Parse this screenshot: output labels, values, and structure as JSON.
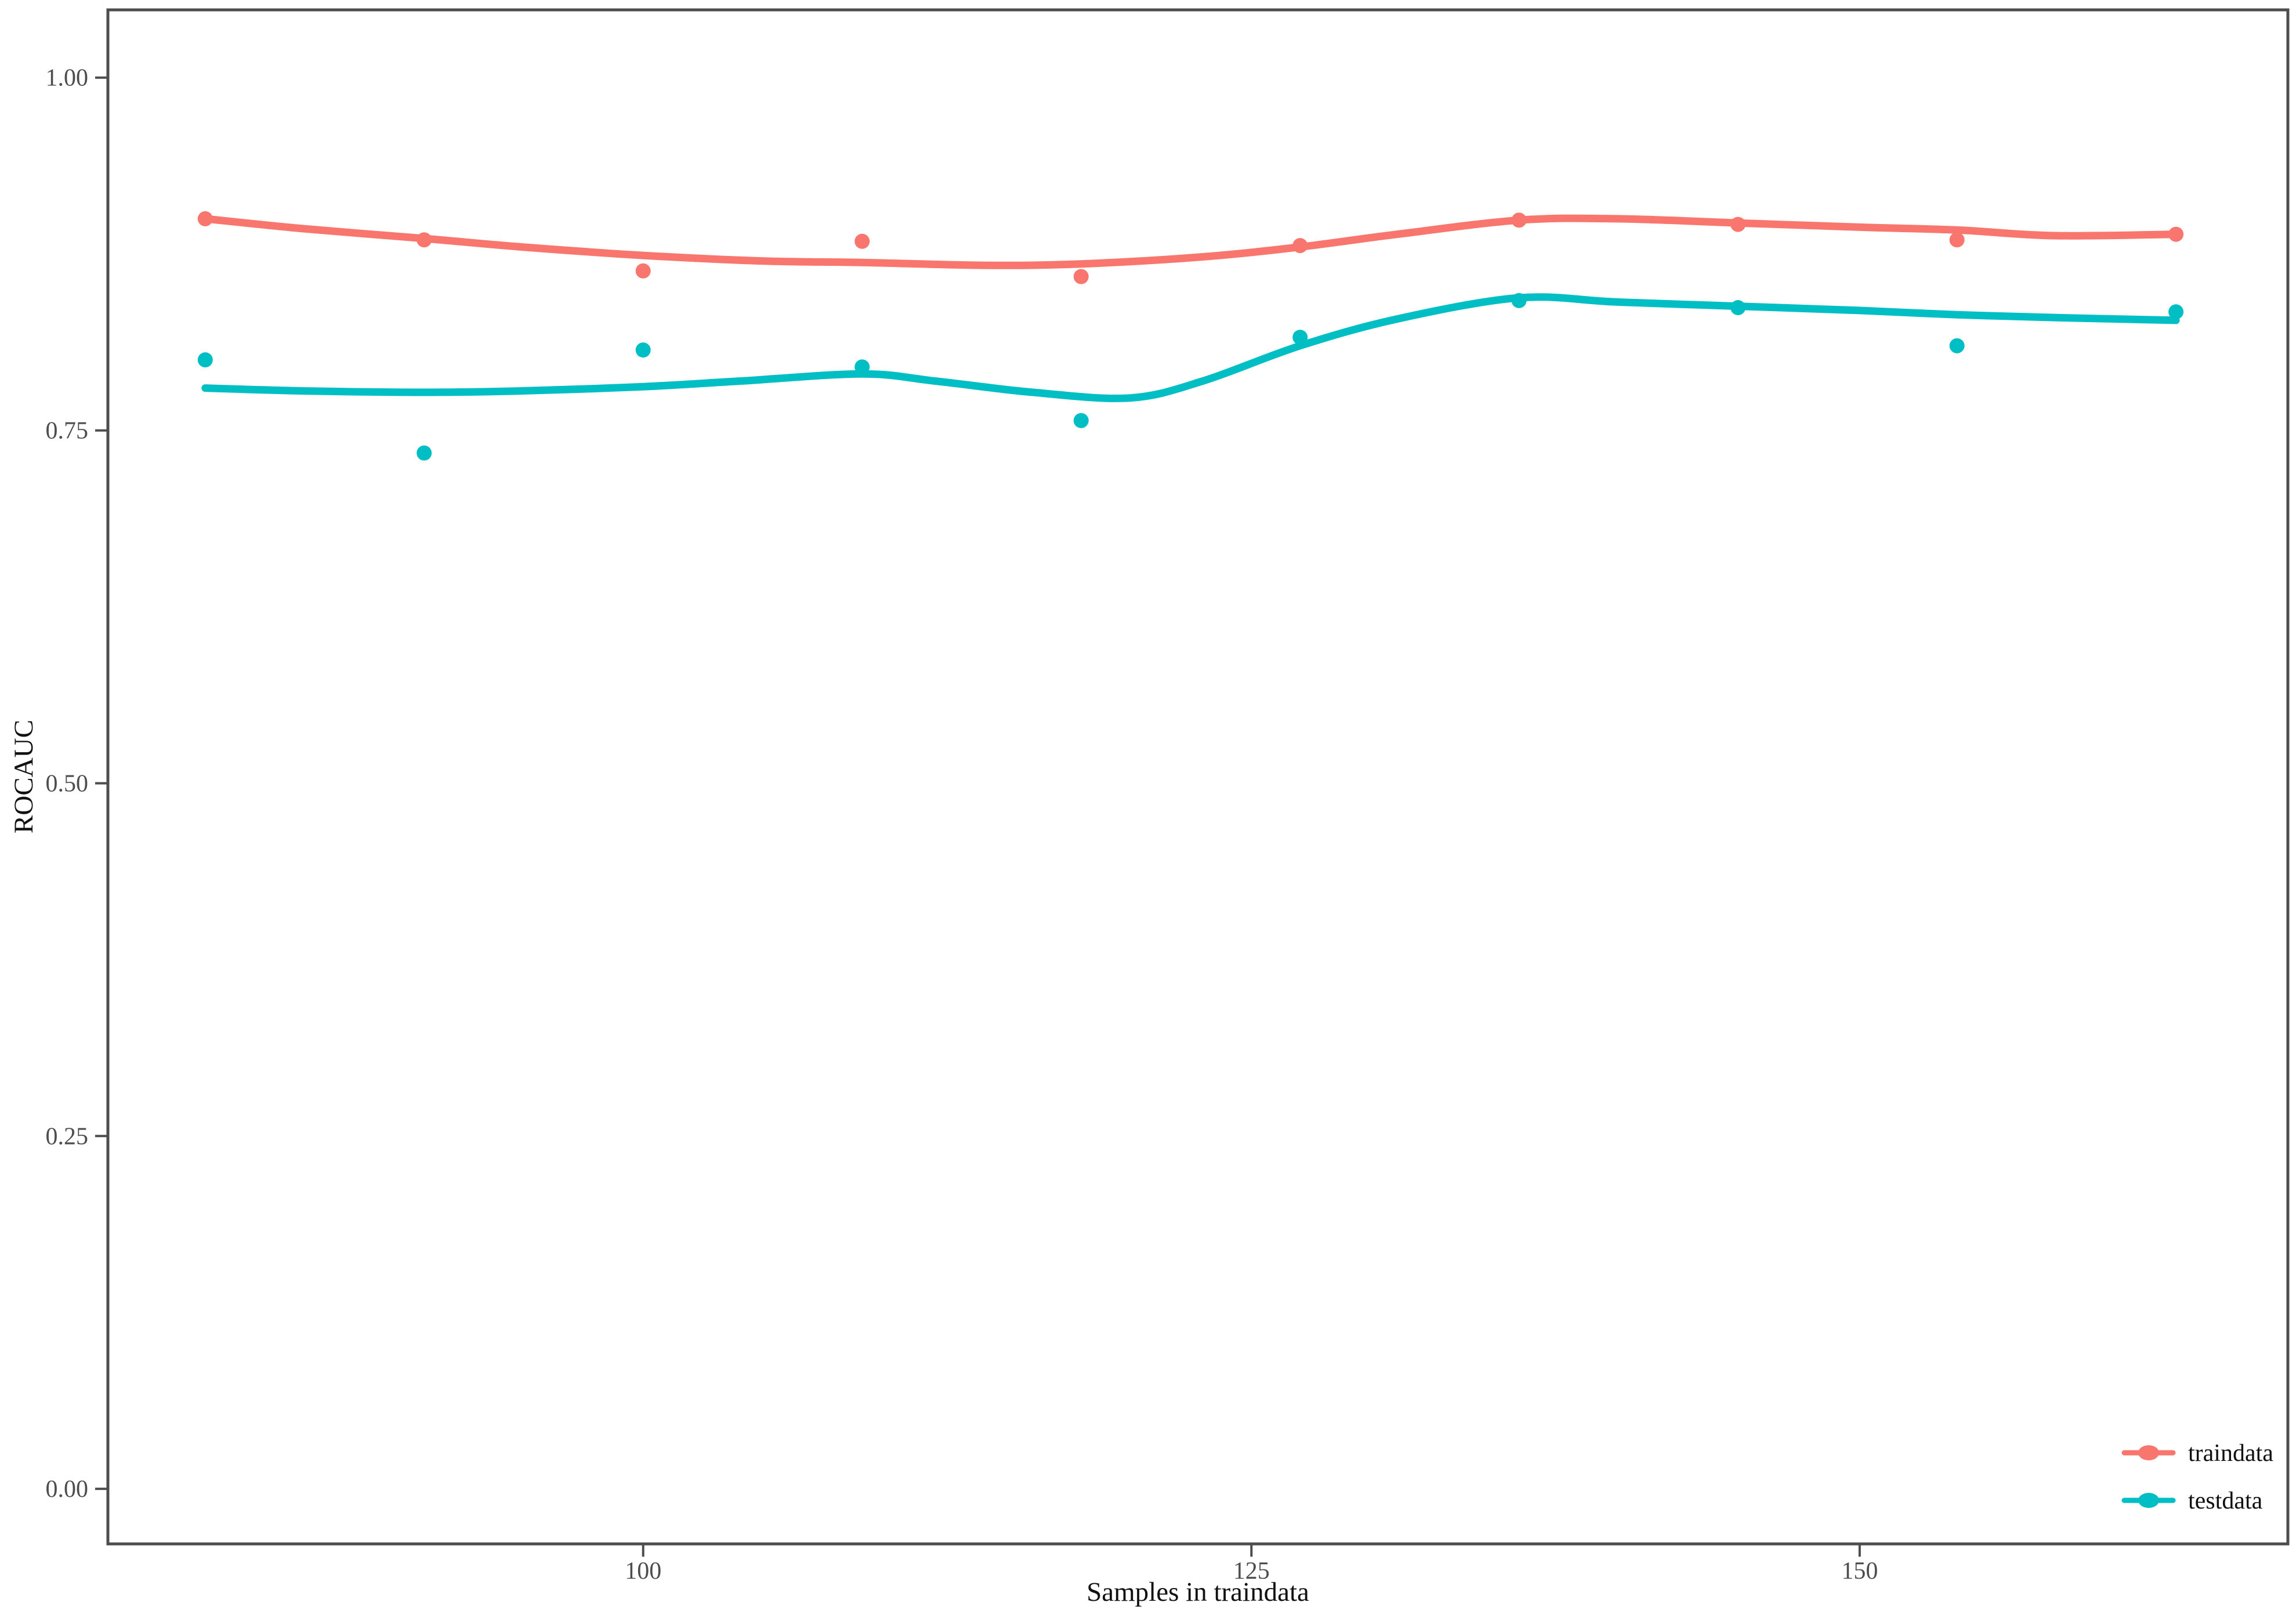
{
  "figure": {
    "background": "#ffffff",
    "panel_border_color": "#4d4d4d",
    "tick_color": "#4d4d4d",
    "tick_label_color": "#4d4d4d",
    "title_text_color": "#111111"
  },
  "chart_data": {
    "type": "scatter",
    "subtype": "points-with-loess-smooth-lines",
    "title": "",
    "xlabel": "Samples in traindata",
    "ylabel": "ROCAUC",
    "grid": false,
    "legend_position": "inside-bottom-right",
    "xlim": [
      78,
      167.6
    ],
    "ylim": [
      -0.039,
      1.048
    ],
    "x_ticks": {
      "values": [
        100,
        125,
        150
      ],
      "labels": [
        "100",
        "125",
        "150"
      ]
    },
    "y_ticks": {
      "values": [
        0.0,
        0.25,
        0.5,
        0.75,
        1.0
      ],
      "labels": [
        "0.00",
        "0.25",
        "0.50",
        "0.75",
        "1.00"
      ]
    },
    "x": [
      82,
      91,
      100,
      109,
      118,
      127,
      136,
      145,
      154,
      163
    ],
    "series": [
      {
        "name": "traindata",
        "color": "#F8766D",
        "points": [
          0.9,
          0.885,
          0.863,
          0.884,
          0.859,
          0.881,
          0.899,
          0.896,
          0.885,
          0.889
        ],
        "smooth_line": [
          [
            82,
            0.9
          ],
          [
            86,
            0.893
          ],
          [
            91,
            0.886
          ],
          [
            95,
            0.88
          ],
          [
            100,
            0.874
          ],
          [
            105,
            0.87
          ],
          [
            109,
            0.869
          ],
          [
            114,
            0.867
          ],
          [
            118,
            0.868
          ],
          [
            123,
            0.873
          ],
          [
            127,
            0.88
          ],
          [
            131,
            0.889
          ],
          [
            136,
            0.899
          ],
          [
            140,
            0.9
          ],
          [
            145,
            0.897
          ],
          [
            150,
            0.894
          ],
          [
            154,
            0.892
          ],
          [
            158,
            0.888
          ],
          [
            163,
            0.889
          ]
        ]
      },
      {
        "name": "testdata",
        "color": "#00BFC4",
        "points": [
          0.8,
          0.734,
          0.807,
          0.795,
          0.757,
          0.816,
          0.842,
          0.837,
          0.81,
          0.834
        ],
        "smooth_line": [
          [
            82,
            0.78
          ],
          [
            86,
            0.778
          ],
          [
            91,
            0.777
          ],
          [
            95,
            0.778
          ],
          [
            100,
            0.781
          ],
          [
            104,
            0.785
          ],
          [
            109,
            0.79
          ],
          [
            112,
            0.785
          ],
          [
            116,
            0.777
          ],
          [
            120,
            0.773
          ],
          [
            123,
            0.785
          ],
          [
            127,
            0.81
          ],
          [
            131,
            0.829
          ],
          [
            136,
            0.844
          ],
          [
            140,
            0.841
          ],
          [
            145,
            0.838
          ],
          [
            150,
            0.835
          ],
          [
            154,
            0.832
          ],
          [
            158,
            0.83
          ],
          [
            163,
            0.828
          ]
        ]
      }
    ]
  }
}
